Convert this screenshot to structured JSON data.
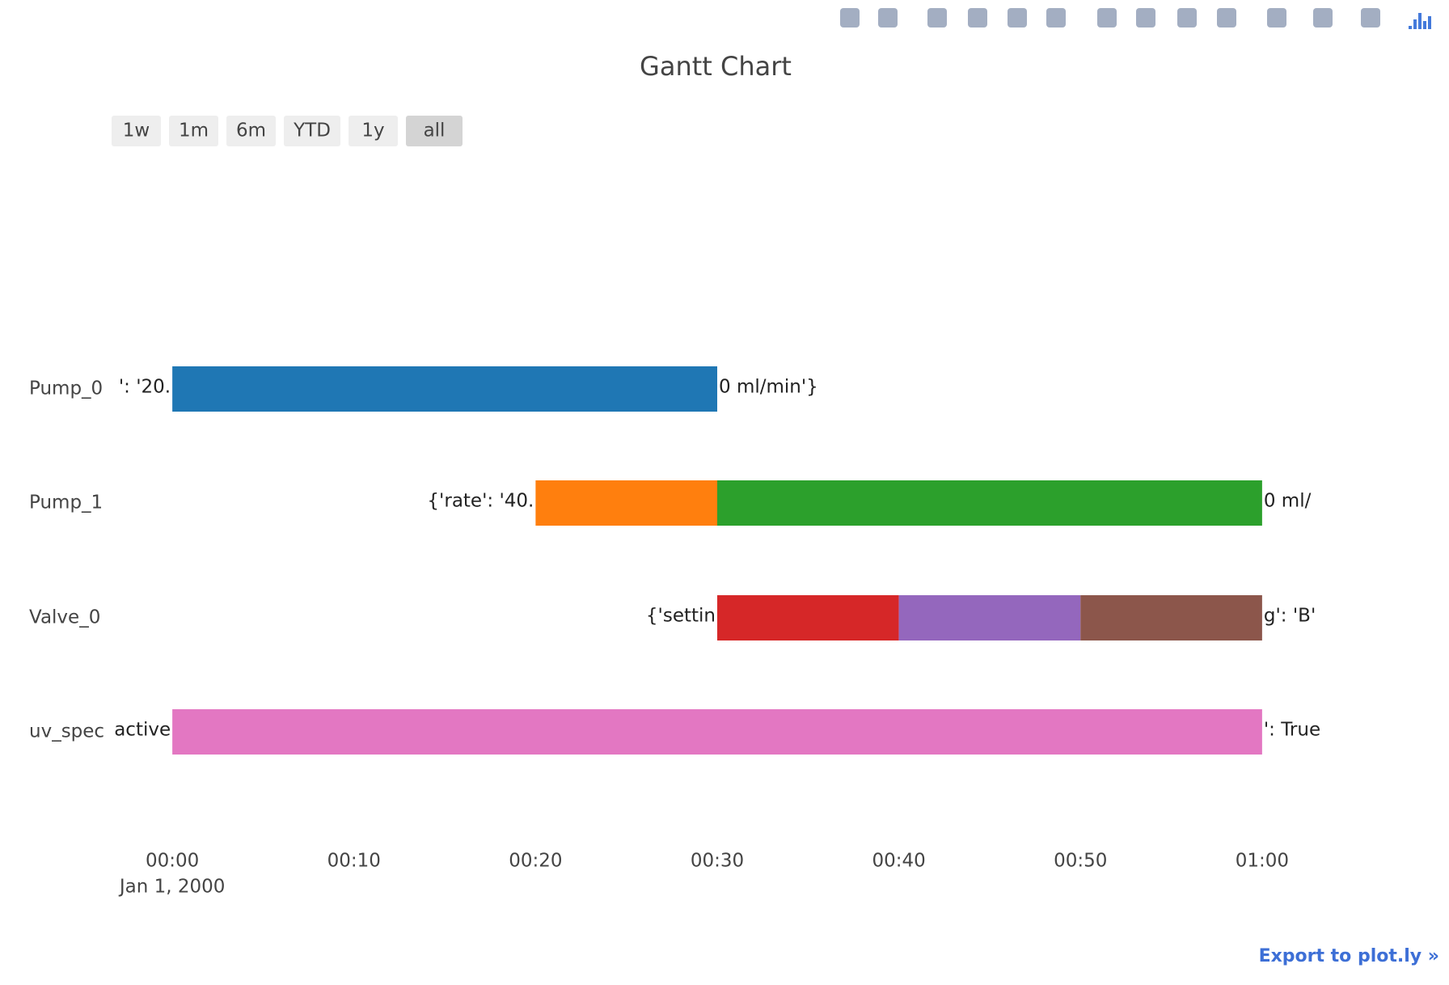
{
  "chart_data": {
    "type": "gantt",
    "title": "Gantt Chart",
    "rows": [
      {
        "name": "Pump_0",
        "label_left": "': '20.",
        "label_right": "0 ml/min'}",
        "bars": [
          {
            "start": 0,
            "end": 30,
            "color": "#1f77b4"
          }
        ]
      },
      {
        "name": "Pump_1",
        "label_left": "{'rate': '40.",
        "label_right": "0 ml/",
        "bars": [
          {
            "start": 20,
            "end": 30,
            "color": "#ff7f0e"
          },
          {
            "start": 30,
            "end": 60,
            "color": "#2ca02c"
          }
        ]
      },
      {
        "name": "Valve_0",
        "label_left": "{'settin",
        "label_right": "g': 'B'",
        "bars": [
          {
            "start": 30,
            "end": 40,
            "color": "#d62728"
          },
          {
            "start": 40,
            "end": 50,
            "color": "#9467bd"
          },
          {
            "start": 50,
            "end": 60,
            "color": "#8c564b"
          }
        ]
      },
      {
        "name": "uv_spec",
        "label_left": "active",
        "label_right": "': True",
        "bars": [
          {
            "start": 0,
            "end": 60,
            "color": "#e377c2"
          }
        ]
      }
    ],
    "xlim": [
      -3.3,
      63.3
    ],
    "xticks": [
      {
        "value": 0,
        "label": "00:00"
      },
      {
        "value": 10,
        "label": "00:10"
      },
      {
        "value": 20,
        "label": "00:20"
      },
      {
        "value": 30,
        "label": "00:30"
      },
      {
        "value": 40,
        "label": "00:40"
      },
      {
        "value": 50,
        "label": "00:50"
      },
      {
        "value": 60,
        "label": "01:00"
      }
    ],
    "x_date_label": "Jan 1, 2000"
  },
  "range_buttons": [
    "1w",
    "1m",
    "6m",
    "YTD",
    "1y",
    "all"
  ],
  "export_link": "Export to plot.ly »"
}
